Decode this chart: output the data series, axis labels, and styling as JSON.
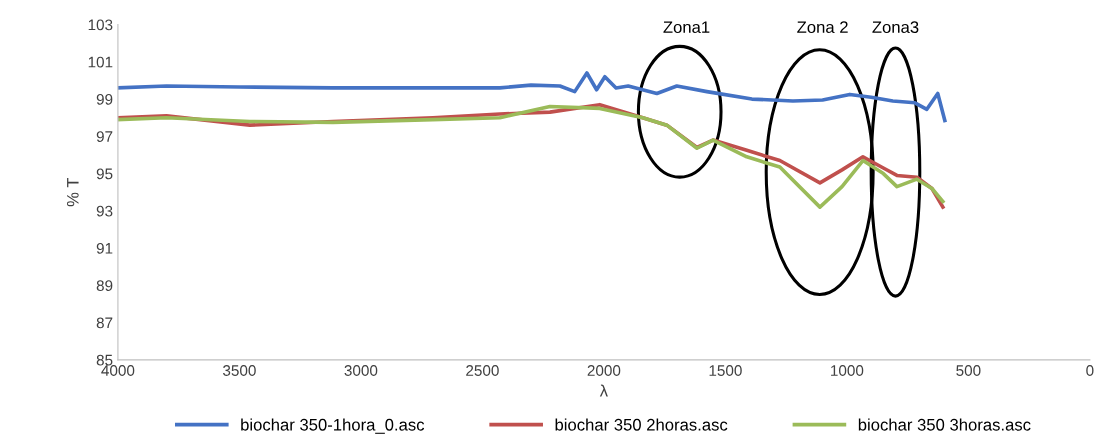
{
  "chart_data": {
    "type": "line",
    "xlabel": "λ",
    "ylabel": "% T",
    "xlim": [
      4000,
      0
    ],
    "xticks": [
      4000,
      3500,
      3000,
      2500,
      2000,
      1500,
      1000,
      500,
      0
    ],
    "ylim": [
      85,
      103
    ],
    "yticks": [
      85,
      87,
      89,
      91,
      93,
      95,
      97,
      99,
      101,
      103
    ],
    "grid": false,
    "legend": "bottom",
    "annotations": [
      "Zona1",
      "Zona 2",
      "Zona3"
    ],
    "series": [
      {
        "name": "biochar 350-1hora_0.asc",
        "color": "#4472c4",
        "x": [
          4000,
          3800,
          3500,
          3115,
          2700,
          2428,
          2300,
          2181,
          2120,
          2070,
          2030,
          1996,
          1950,
          1900,
          1782,
          1700,
          1576,
          1391,
          1222,
          1100,
          988,
          900,
          811,
          720,
          671,
          626,
          597
        ],
        "values": [
          99.6,
          99.7,
          99.65,
          99.6,
          99.6,
          99.6,
          99.75,
          99.7,
          99.4,
          100.4,
          99.5,
          100.2,
          99.6,
          99.7,
          99.3,
          99.7,
          99.4,
          99.0,
          98.9,
          98.95,
          99.25,
          99.1,
          98.9,
          98.8,
          98.45,
          99.3,
          97.85
        ]
      },
      {
        "name": "biochar 350 2horas.asc",
        "color": "#c0504d",
        "x": [
          4000,
          3800,
          3457,
          3115,
          2704,
          2428,
          2222,
          2017,
          1840,
          1741,
          1617,
          1551,
          1412,
          1276,
          1111,
          1020,
          934,
          850,
          794,
          712,
          650,
          605
        ],
        "values": [
          98.0,
          98.1,
          97.6,
          97.8,
          98.0,
          98.2,
          98.3,
          98.7,
          98.0,
          97.6,
          96.4,
          96.8,
          96.25,
          95.7,
          94.5,
          95.2,
          95.9,
          95.3,
          94.9,
          94.8,
          94.2,
          93.2
        ]
      },
      {
        "name": "biochar 350 3horas.asc",
        "color": "#9bbb59",
        "x": [
          4000,
          3800,
          3457,
          3115,
          2704,
          2428,
          2222,
          2017,
          1840,
          1741,
          1617,
          1551,
          1412,
          1276,
          1111,
          1020,
          934,
          850,
          794,
          712,
          650,
          605
        ],
        "values": [
          97.9,
          98.0,
          97.8,
          97.75,
          97.9,
          98.0,
          98.6,
          98.5,
          98.0,
          97.6,
          96.36,
          96.8,
          95.9,
          95.35,
          93.2,
          94.3,
          95.7,
          95.0,
          94.3,
          94.7,
          94.2,
          93.5
        ]
      }
    ]
  }
}
